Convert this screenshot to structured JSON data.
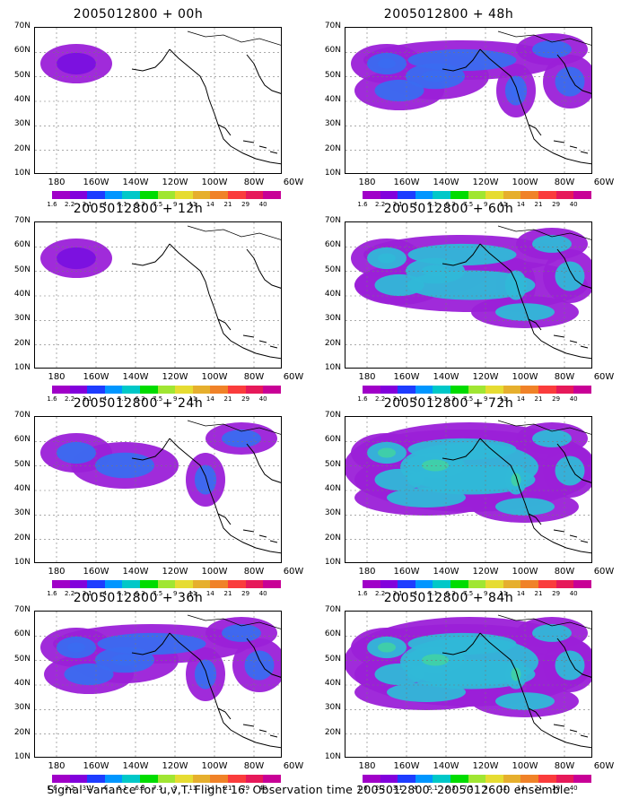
{
  "panels": [
    {
      "title": "2005012800 + 00h",
      "level": 1
    },
    {
      "title": "2005012800 + 48h",
      "level": 3
    },
    {
      "title": "2005012800 + 12h",
      "level": 1
    },
    {
      "title": "2005012800 + 60h",
      "level": 4
    },
    {
      "title": "2005012800 + 24h",
      "level": 2
    },
    {
      "title": "2005012800 + 72h",
      "level": 5
    },
    {
      "title": "2005012800 + 36h",
      "level": 3
    },
    {
      "title": "2005012800 + 84h",
      "level": 5
    }
  ],
  "lat_labels": [
    "70N",
    "60N",
    "50N",
    "40N",
    "30N",
    "20N",
    "10N"
  ],
  "lon_labels": [
    "180",
    "160W",
    "140W",
    "120W",
    "100W",
    "80W",
    "60W"
  ],
  "colorbar": {
    "labels": [
      "1.6",
      "2.2",
      "3.1",
      "4",
      "5.1",
      "6.3",
      "7.5",
      "9",
      "11",
      "14",
      "21",
      "29",
      "40"
    ],
    "colors": [
      "#a000c8",
      "#8200dc",
      "#1e3cff",
      "#0096ff",
      "#00c8c8",
      "#00dc00",
      "#a0e632",
      "#e6dc32",
      "#e6af2d",
      "#f08228",
      "#fa3c3c",
      "#e6195a",
      "#c80096"
    ]
  },
  "caption": "Signal Variance for u,v,T. Flight 16. Observation time 2005012800. 2005012600 ensemble."
}
